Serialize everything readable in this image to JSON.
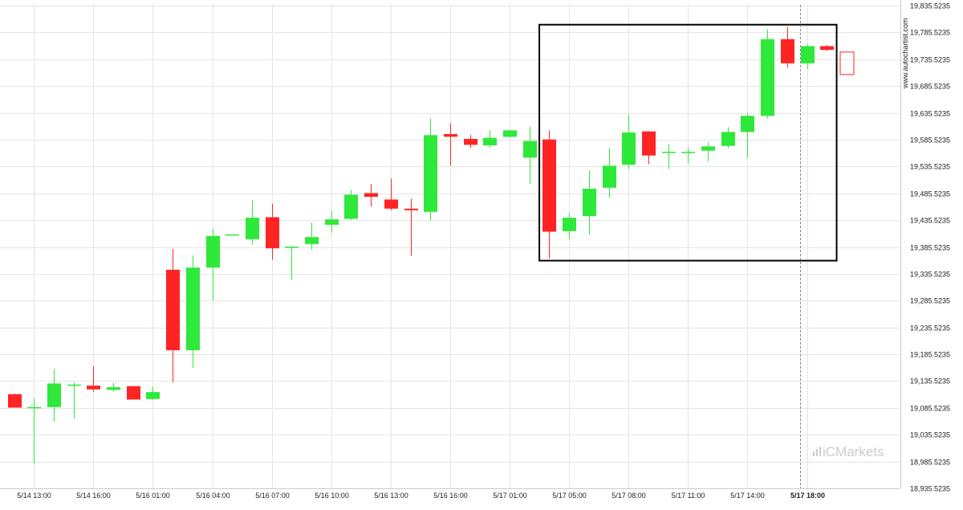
{
  "chart_data": {
    "type": "candlestick",
    "y_ticks": [
      "18,935.5235",
      "18,985.5235",
      "19,035.5235",
      "19,085.5235",
      "19,135.5235",
      "19,185.5235",
      "19,235.5235",
      "19,285.5235",
      "19,335.5235",
      "19,385.5235",
      "19,435.5235",
      "19,485.5235",
      "19,535.5235",
      "19,585.5235",
      "19,635.5235",
      "19,685.5235",
      "19,735.5235",
      "19,785.5235",
      "19,835.5235"
    ],
    "y_tick_values": [
      18935.5235,
      18985.5235,
      19035.5235,
      19085.5235,
      19135.5235,
      19185.5235,
      19235.5235,
      19285.5235,
      19335.5235,
      19385.5235,
      19435.5235,
      19485.5235,
      19535.5235,
      19585.5235,
      19635.5235,
      19685.5235,
      19735.5235,
      19785.5235,
      19835.5235
    ],
    "ylim": [
      18935.5235,
      19835.5235
    ],
    "x_ticks": [
      {
        "label": "5/14 13:00",
        "index": 1
      },
      {
        "label": "5/14 16:00",
        "index": 4
      },
      {
        "label": "5/16 01:00",
        "index": 7
      },
      {
        "label": "5/16 04:00",
        "index": 10
      },
      {
        "label": "5/16 07:00",
        "index": 13
      },
      {
        "label": "5/16 10:00",
        "index": 16
      },
      {
        "label": "5/16 13:00",
        "index": 19
      },
      {
        "label": "5/16 16:00",
        "index": 22
      },
      {
        "label": "5/17 01:00",
        "index": 25
      },
      {
        "label": "5/17 05:00",
        "index": 28
      },
      {
        "label": "5/17 08:00",
        "index": 31
      },
      {
        "label": "5/17 11:00",
        "index": 34
      },
      {
        "label": "5/17 14:00",
        "index": 37
      },
      {
        "label": "5/17 18:00",
        "index": 40,
        "highlight": true
      }
    ],
    "candles": [
      {
        "o": 19111,
        "h": 19112,
        "l": 19086,
        "c": 19086
      },
      {
        "o": 19086,
        "h": 19103,
        "l": 18982,
        "c": 19087
      },
      {
        "o": 19087,
        "h": 19158,
        "l": 19060,
        "c": 19131
      },
      {
        "o": 19129,
        "h": 19133,
        "l": 19065,
        "c": 19129
      },
      {
        "o": 19127,
        "h": 19163,
        "l": 19115,
        "c": 19120
      },
      {
        "o": 19119,
        "h": 19132,
        "l": 19116,
        "c": 19124
      },
      {
        "o": 19126,
        "h": 19126,
        "l": 19101,
        "c": 19101
      },
      {
        "o": 19102,
        "h": 19125,
        "l": 19100,
        "c": 19115
      },
      {
        "o": 19343,
        "h": 19382,
        "l": 19133,
        "c": 19193
      },
      {
        "o": 19193,
        "h": 19370,
        "l": 19160,
        "c": 19347
      },
      {
        "o": 19347,
        "h": 19419,
        "l": 19286,
        "c": 19406
      },
      {
        "o": 19408,
        "h": 19409,
        "l": 19408,
        "c": 19409
      },
      {
        "o": 19400,
        "h": 19473,
        "l": 19390,
        "c": 19440
      },
      {
        "o": 19441,
        "h": 19466,
        "l": 19362,
        "c": 19383
      },
      {
        "o": 19386,
        "h": 19388,
        "l": 19324,
        "c": 19386
      },
      {
        "o": 19391,
        "h": 19431,
        "l": 19381,
        "c": 19404
      },
      {
        "o": 19427,
        "h": 19453,
        "l": 19412,
        "c": 19437
      },
      {
        "o": 19438,
        "h": 19492,
        "l": 19436,
        "c": 19483
      },
      {
        "o": 19486,
        "h": 19503,
        "l": 19461,
        "c": 19479
      },
      {
        "o": 19474,
        "h": 19513,
        "l": 19454,
        "c": 19457
      },
      {
        "o": 19457,
        "h": 19475,
        "l": 19369,
        "c": 19454
      },
      {
        "o": 19451,
        "h": 19625,
        "l": 19435,
        "c": 19594
      },
      {
        "o": 19596,
        "h": 19616,
        "l": 19537,
        "c": 19591
      },
      {
        "o": 19587,
        "h": 19594,
        "l": 19570,
        "c": 19576
      },
      {
        "o": 19575,
        "h": 19603,
        "l": 19571,
        "c": 19589
      },
      {
        "o": 19591,
        "h": 19605,
        "l": 19588,
        "c": 19603
      },
      {
        "o": 19552,
        "h": 19610,
        "l": 19503,
        "c": 19583
      },
      {
        "o": 19586,
        "h": 19603,
        "l": 19364,
        "c": 19414
      },
      {
        "o": 19415,
        "h": 19449,
        "l": 19400,
        "c": 19440
      },
      {
        "o": 19443,
        "h": 19528,
        "l": 19408,
        "c": 19494
      },
      {
        "o": 19496,
        "h": 19570,
        "l": 19477,
        "c": 19537
      },
      {
        "o": 19539,
        "h": 19632,
        "l": 19531,
        "c": 19599
      },
      {
        "o": 19601,
        "h": 19601,
        "l": 19540,
        "c": 19556
      },
      {
        "o": 19563,
        "h": 19577,
        "l": 19531,
        "c": 19563
      },
      {
        "o": 19563,
        "h": 19570,
        "l": 19541,
        "c": 19563
      },
      {
        "o": 19565,
        "h": 19581,
        "l": 19545,
        "c": 19573
      },
      {
        "o": 19574,
        "h": 19609,
        "l": 19570,
        "c": 19600
      },
      {
        "o": 19600,
        "h": 19635,
        "l": 19552,
        "c": 19630
      },
      {
        "o": 19630,
        "h": 19791,
        "l": 19625,
        "c": 19773
      },
      {
        "o": 19773,
        "h": 19795,
        "l": 19720,
        "c": 19728
      },
      {
        "o": 19728,
        "h": 19763,
        "l": 19717,
        "c": 19760
      },
      {
        "o": 19760,
        "h": 19762,
        "l": 19751,
        "c": 19753
      }
    ],
    "projection": {
      "o": 19749,
      "c": 19707
    },
    "highlight_box": {
      "from_index": 26.5,
      "to_index": 41.5,
      "y_low": 19360,
      "y_high": 19800
    },
    "current_marker_index": 40
  },
  "side_label": "www.autochartist.com",
  "brand": {
    "prefix": "i",
    "name": "CMarkets"
  },
  "colors": {
    "up": "#2ee83a",
    "down": "#ff2424",
    "grid": "#e5e5e5",
    "box": "#000000"
  }
}
